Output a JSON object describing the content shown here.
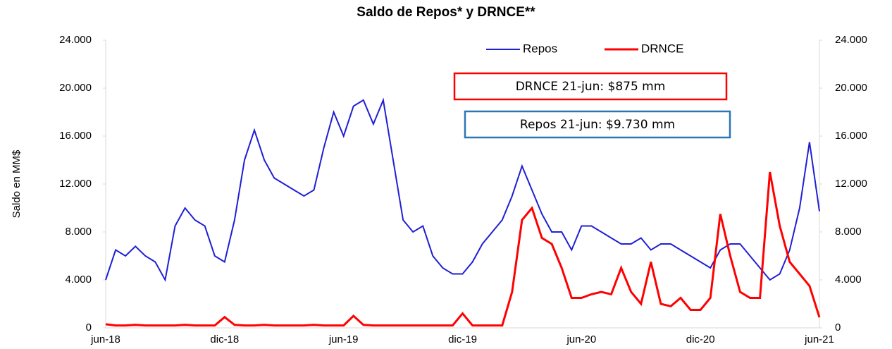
{
  "chart_data": {
    "type": "line",
    "title": "Saldo de Repos* y DRNCE**",
    "y_label": "Saldo en MM$",
    "annotations": [
      "DRNCE 21-jun: $875 mm",
      "Repos 21-jun: $9.730 mm"
    ],
    "categories": [
      "jun-18",
      null,
      null,
      null,
      null,
      null,
      null,
      null,
      null,
      null,
      null,
      null,
      "dic-18",
      null,
      null,
      null,
      null,
      null,
      null,
      null,
      null,
      null,
      null,
      null,
      "jun-19",
      null,
      null,
      null,
      null,
      null,
      null,
      null,
      null,
      null,
      null,
      null,
      "dic-19",
      null,
      null,
      null,
      null,
      null,
      null,
      null,
      null,
      null,
      null,
      null,
      "jun-20",
      null,
      null,
      null,
      null,
      null,
      null,
      null,
      null,
      null,
      null,
      null,
      "dic-20",
      null,
      null,
      null,
      null,
      null,
      null,
      null,
      null,
      null,
      null,
      null,
      "jun-21"
    ],
    "series": [
      {
        "name": "Repos",
        "color": "#1f1fd6",
        "values": [
          4000,
          6500,
          6000,
          6800,
          6000,
          5500,
          4000,
          8500,
          10000,
          9000,
          8500,
          6000,
          5500,
          9000,
          14000,
          16500,
          14000,
          12500,
          12000,
          11500,
          11000,
          11500,
          15000,
          18000,
          16000,
          18500,
          19000,
          17000,
          19000,
          14000,
          9000,
          8000,
          8500,
          6000,
          5000,
          4500,
          4500,
          5500,
          7000,
          8000,
          9000,
          11000,
          13500,
          11500,
          9500,
          8000,
          8000,
          6500,
          8500,
          8500,
          8000,
          7500,
          7000,
          7000,
          7500,
          6500,
          7000,
          7000,
          6500,
          6000,
          5500,
          5000,
          6500,
          7000,
          7000,
          6000,
          5000,
          4000,
          4500,
          6500,
          10000,
          15500,
          9730
        ]
      },
      {
        "name": "DRNCE",
        "color": "#ff0000",
        "values": [
          300,
          200,
          200,
          250,
          200,
          200,
          200,
          200,
          250,
          200,
          200,
          200,
          900,
          250,
          200,
          200,
          250,
          200,
          200,
          200,
          200,
          250,
          200,
          200,
          200,
          1000,
          250,
          200,
          200,
          200,
          200,
          200,
          200,
          200,
          200,
          200,
          1200,
          200,
          200,
          200,
          200,
          3000,
          9000,
          10000,
          7500,
          7000,
          5000,
          2500,
          2500,
          2800,
          3000,
          2800,
          5000,
          3000,
          2000,
          5500,
          2000,
          1800,
          2500,
          1500,
          1500,
          2500,
          9500,
          6000,
          3000,
          2500,
          2500,
          13000,
          8500,
          5500,
          4500,
          3500,
          875
        ]
      }
    ],
    "ylim": [
      0,
      24000
    ],
    "yticks": [
      0,
      {
        "value": 4000,
        "label": "4.000"
      },
      {
        "value": 8000,
        "label": "8.000"
      },
      {
        "value": 12000,
        "label": "12.000"
      },
      {
        "value": 16000,
        "label": "16.000"
      },
      {
        "value": 20000,
        "label": "20.000"
      },
      {
        "value": 24000,
        "label": "24.000"
      }
    ],
    "y2lim": [
      0,
      24000
    ],
    "y2ticks": [
      0,
      {
        "value": 4000,
        "label": "4.000"
      },
      {
        "value": 8000,
        "label": "8.000"
      },
      {
        "value": 12000,
        "label": "12.000"
      },
      {
        "value": 16000,
        "label": "16.000"
      },
      {
        "value": 20000,
        "label": "20.000"
      },
      {
        "value": 24000,
        "label": "24.000"
      }
    ],
    "grid": false,
    "legend": "top"
  }
}
